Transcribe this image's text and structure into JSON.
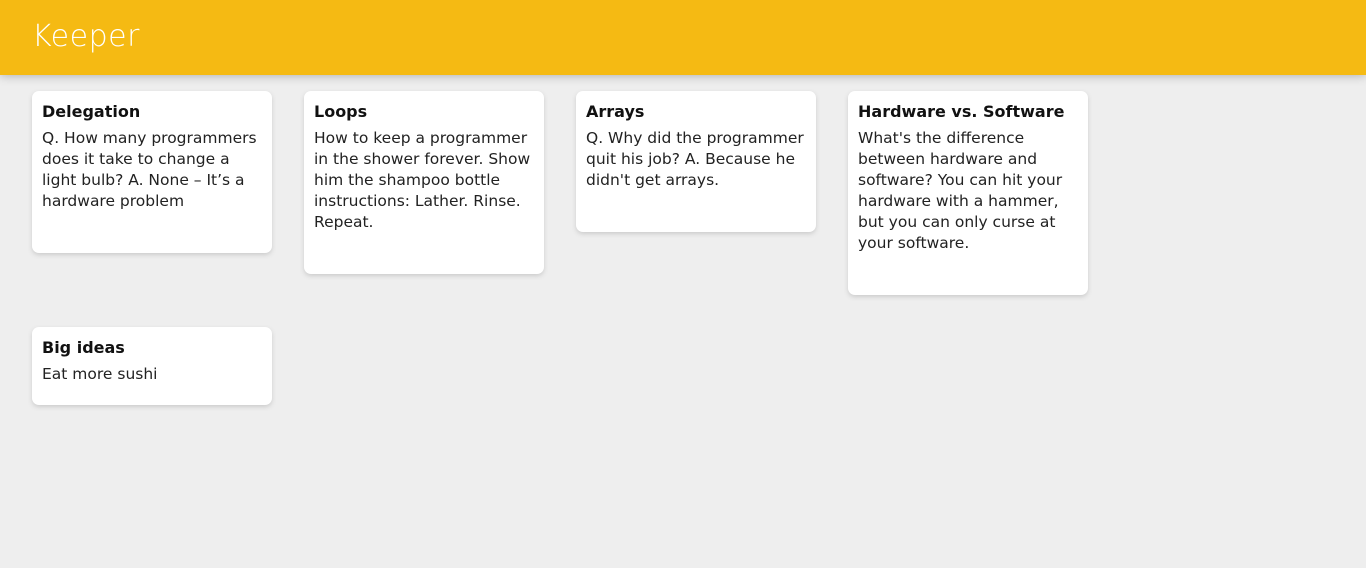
{
  "header": {
    "title": "Keeper"
  },
  "notes": [
    {
      "title": "Delegation",
      "content": "Q. How many programmers does it take to change a light bulb? A. None – It’s a hardware problem"
    },
    {
      "title": "Loops",
      "content": "How to keep a programmer in the shower forever. Show him the shampoo bottle instructions: Lather. Rinse. Repeat."
    },
    {
      "title": "Arrays",
      "content": "Q. Why did the programmer quit his job? A. Because he didn't get arrays."
    },
    {
      "title": "Hardware vs. Software",
      "content": "What's the difference between hardware and software? You can hit your hardware with a hammer, but you can only curse at your software."
    },
    {
      "title": "Big ideas",
      "content": "Eat more sushi"
    }
  ]
}
